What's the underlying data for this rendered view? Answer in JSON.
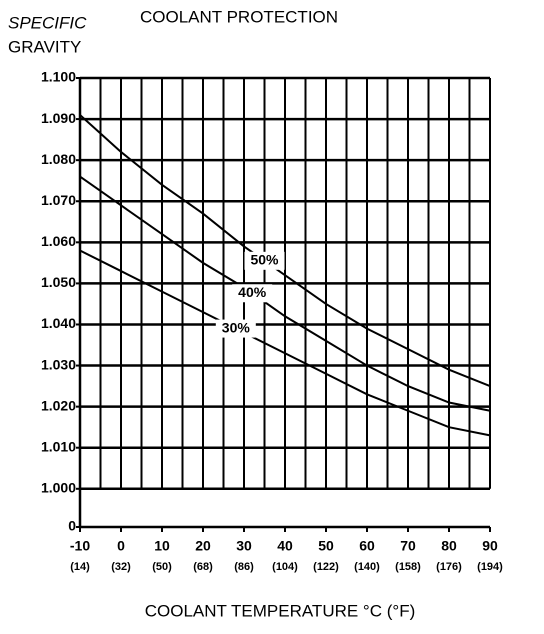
{
  "chart_data": {
    "type": "line",
    "title": "COOLANT PROTECTION",
    "y_label_lines": [
      "SPECIFIC",
      "GRAVITY"
    ],
    "x_label": "COOLANT TEMPERATURE °C (°F)",
    "x": [
      -10,
      0,
      10,
      20,
      30,
      40,
      50,
      60,
      70,
      80,
      90
    ],
    "xlim": [
      -10,
      90
    ],
    "xticks": [
      -10,
      0,
      10,
      20,
      30,
      40,
      50,
      60,
      70,
      80,
      90
    ],
    "xtick_f_labels": [
      "(14)",
      "(32)",
      "(50)",
      "(68)",
      "(86)",
      "(104)",
      "(122)",
      "(140)",
      "(158)",
      "(176)",
      "(194)"
    ],
    "xgrid": [
      -10,
      -5,
      0,
      5,
      10,
      15,
      20,
      25,
      30,
      35,
      40,
      45,
      50,
      55,
      60,
      65,
      70,
      75,
      80,
      85,
      90
    ],
    "ylim": [
      0.9907,
      1.1
    ],
    "yticks": [
      {
        "value": 0.9907,
        "label": "0"
      },
      {
        "value": 1.0,
        "label": "1.000"
      },
      {
        "value": 1.01,
        "label": "1.010"
      },
      {
        "value": 1.02,
        "label": "1.020"
      },
      {
        "value": 1.03,
        "label": "1.030"
      },
      {
        "value": 1.04,
        "label": "1.040"
      },
      {
        "value": 1.05,
        "label": "1.050"
      },
      {
        "value": 1.06,
        "label": "1.060"
      },
      {
        "value": 1.07,
        "label": "1.070"
      },
      {
        "value": 1.08,
        "label": "1.080"
      },
      {
        "value": 1.09,
        "label": "1.090"
      },
      {
        "value": 1.1,
        "label": "1.100"
      }
    ],
    "grid": true,
    "series": [
      {
        "name": "50%",
        "color": "#000000",
        "values": [
          1.091,
          1.082,
          1.074,
          1.067,
          1.059,
          1.052,
          1.045,
          1.039,
          1.034,
          1.029,
          1.025
        ]
      },
      {
        "name": "40%",
        "color": "#000000",
        "values": [
          1.076,
          1.069,
          1.062,
          1.055,
          1.049,
          1.042,
          1.036,
          1.03,
          1.025,
          1.021,
          1.019
        ]
      },
      {
        "name": "30%",
        "color": "#000000",
        "values": [
          1.058,
          1.053,
          1.048,
          1.043,
          1.038,
          1.033,
          1.028,
          1.023,
          1.019,
          1.015,
          1.013
        ]
      }
    ]
  }
}
